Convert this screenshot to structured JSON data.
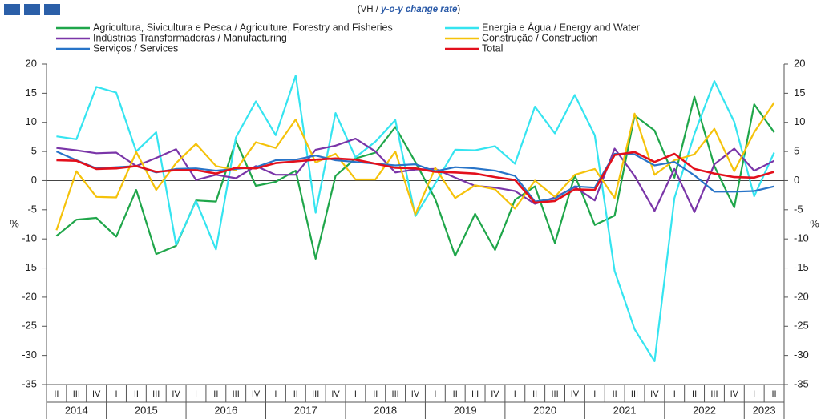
{
  "chart_data": {
    "type": "line",
    "subtitle": {
      "prefix": "(VH / ",
      "emphasis": "y-o-y change rate",
      "suffix": ")"
    },
    "y_label": "%",
    "y2_label": "%",
    "categories": [
      "II",
      "III",
      "IV",
      "I",
      "II",
      "III",
      "IV",
      "I",
      "II",
      "III",
      "IV",
      "I",
      "II",
      "III",
      "IV",
      "I",
      "II",
      "III",
      "IV",
      "I",
      "II",
      "III",
      "IV",
      "I",
      "II",
      "III",
      "IV",
      "I",
      "II",
      "III",
      "IV",
      "I",
      "II",
      "III",
      "IV",
      "I",
      "II"
    ],
    "years": [
      "2014",
      "2015",
      "2016",
      "2017",
      "2018",
      "2019",
      "2020",
      "2021",
      "2022",
      "2023"
    ],
    "ylim": [
      -35,
      20
    ],
    "yticks": [
      -35,
      -30,
      -25,
      -20,
      -15,
      -10,
      -5,
      0,
      5,
      10,
      15,
      20
    ],
    "y2lim": [
      -35,
      20
    ],
    "y2ticks": [
      -35,
      -30,
      -25,
      -20,
      -15,
      -10,
      -5,
      0,
      5,
      10,
      15,
      20
    ],
    "series": [
      {
        "name": "Agricultura, Sivicultura e Pesca / Agriculture, Forestry and Fisheries",
        "color": "#1fa64a",
        "values": [
          -9.5,
          -6.7,
          -6.4,
          -9.6,
          -1.6,
          -12.6,
          -11.2,
          -3.4,
          -3.6,
          6.8,
          -0.9,
          -0.2,
          1.7,
          -13.4,
          0.8,
          3.8,
          4.8,
          9.2,
          3.2,
          -3.2,
          -12.9,
          -5.7,
          -11.9,
          -3.3,
          -1.0,
          -10.7,
          0.9,
          -7.6,
          -6.0,
          11.2,
          8.6,
          0.5,
          14.4,
          2.5,
          -4.6,
          13.1,
          8.3
        ]
      },
      {
        "name": "Energia e Água / Energy and Water",
        "color": "#35e4f0",
        "values": [
          7.6,
          7.1,
          16.1,
          15.1,
          5.0,
          8.3,
          -11.0,
          -3.5,
          -11.8,
          7.4,
          13.6,
          7.8,
          18.0,
          -5.5,
          11.6,
          4.0,
          6.7,
          10.4,
          -6.1,
          -0.5,
          5.3,
          5.2,
          5.9,
          2.9,
          12.7,
          8.1,
          14.7,
          7.8,
          -15.5,
          -25.5,
          -31.0,
          -3.0,
          8.0,
          17.1,
          10.1,
          -2.7,
          4.8
        ]
      },
      {
        "name": "Indústrias Transformadoras / Manufacturing",
        "color": "#7a35a8",
        "values": [
          5.6,
          5.2,
          4.7,
          4.8,
          2.5,
          3.9,
          5.4,
          0.1,
          1.0,
          0.4,
          2.5,
          1.0,
          1.0,
          5.3,
          6.0,
          7.2,
          5.0,
          1.4,
          1.9,
          2.0,
          0.5,
          -0.9,
          -1.2,
          -1.8,
          -4.0,
          -2.9,
          -1.1,
          -3.4,
          5.5,
          0.8,
          -5.2,
          2.0,
          -5.4,
          2.8,
          5.5,
          1.7,
          3.4
        ]
      },
      {
        "name": "Construção / Construction",
        "color": "#f5c20a",
        "values": [
          -8.5,
          1.6,
          -2.8,
          -2.9,
          4.9,
          -1.6,
          3.0,
          6.3,
          2.5,
          1.8,
          6.6,
          5.6,
          10.5,
          3.1,
          4.6,
          0.2,
          0.2,
          5.0,
          -5.8,
          2.2,
          -3.0,
          -0.8,
          -1.5,
          -4.8,
          0.0,
          -2.8,
          1.0,
          2.0,
          -3.0,
          11.5,
          1.0,
          3.5,
          4.5,
          8.9,
          1.6,
          8.3,
          13.4
        ]
      },
      {
        "name": "Serviços / Services",
        "color": "#2874c8",
        "values": [
          5.0,
          3.5,
          2.1,
          2.3,
          2.5,
          1.4,
          2.0,
          2.1,
          1.7,
          2.0,
          2.3,
          3.5,
          3.6,
          4.3,
          3.5,
          3.2,
          2.9,
          2.6,
          2.8,
          1.6,
          2.3,
          2.1,
          1.7,
          0.8,
          -3.6,
          -3.1,
          -1.0,
          -1.2,
          4.6,
          4.5,
          2.6,
          3.2,
          0.9,
          -1.9,
          -1.9,
          -1.8,
          -1.0
        ]
      },
      {
        "name": "Total",
        "color": "#e3101c",
        "values": [
          3.5,
          3.4,
          2.0,
          2.1,
          2.5,
          1.5,
          1.8,
          1.8,
          1.2,
          2.2,
          2.1,
          3.0,
          3.3,
          3.6,
          3.8,
          3.6,
          2.9,
          2.2,
          2.1,
          1.5,
          1.4,
          1.2,
          0.6,
          0.1,
          -3.8,
          -3.5,
          -1.5,
          -1.6,
          4.4,
          4.9,
          3.2,
          4.6,
          2.0,
          1.2,
          0.6,
          0.5,
          1.5
        ]
      }
    ]
  }
}
